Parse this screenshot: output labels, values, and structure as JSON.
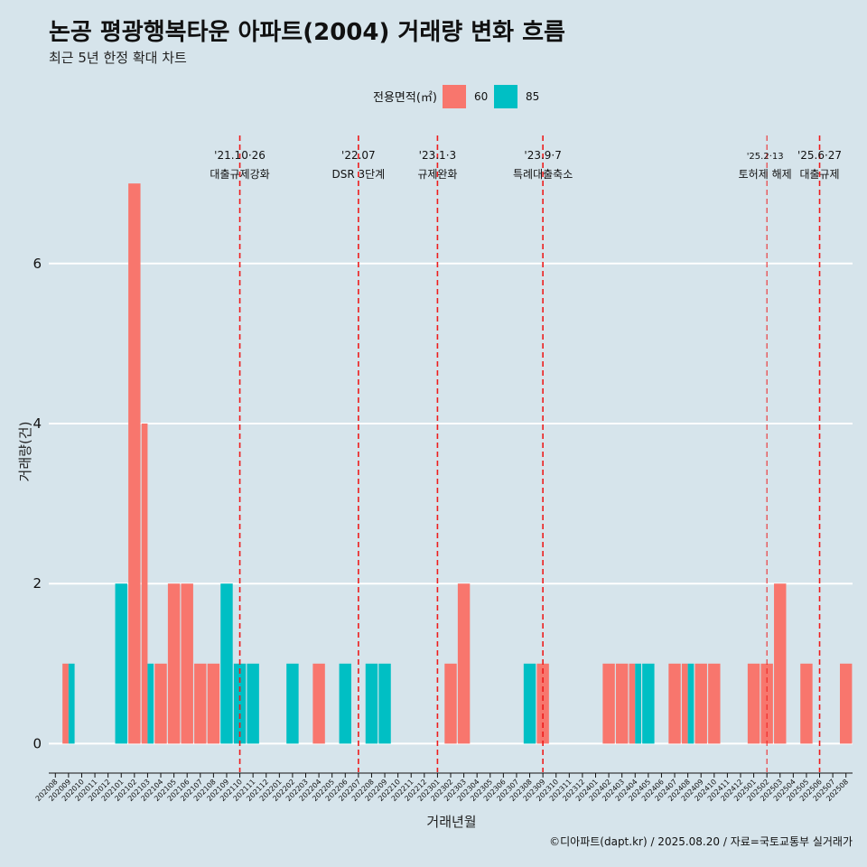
{
  "chart_data": {
    "type": "bar",
    "title": "논공 평광행복타운 아파트(2004) 거래량 변화 흐름",
    "subtitle": "최근 5년 한정 확대 차트",
    "xlabel": "거래년월",
    "ylabel": "거래량(건)",
    "ylim": [
      -0.3,
      7.6
    ],
    "yticks": [
      0,
      2,
      4,
      6
    ],
    "grid": true,
    "legend": {
      "title": "전용면적(㎡)",
      "placement": "top"
    },
    "categories": [
      "202008",
      "202009",
      "202010",
      "202011",
      "202012",
      "202101",
      "202102",
      "202103",
      "202104",
      "202105",
      "202106",
      "202107",
      "202108",
      "202109",
      "202110",
      "202111",
      "202112",
      "202201",
      "202202",
      "202203",
      "202204",
      "202205",
      "202206",
      "202207",
      "202208",
      "202209",
      "202210",
      "202211",
      "202212",
      "202301",
      "202302",
      "202303",
      "202304",
      "202305",
      "202306",
      "202307",
      "202308",
      "202309",
      "202310",
      "202311",
      "202312",
      "202401",
      "202402",
      "202403",
      "202404",
      "202405",
      "202406",
      "202407",
      "202408",
      "202409",
      "202410",
      "202411",
      "202412",
      "202501",
      "202502",
      "202503",
      "202504",
      "202505",
      "202506",
      "202507",
      "202508"
    ],
    "series": [
      {
        "name": "60",
        "color": "#f8766d",
        "values": [
          0,
          1,
          0,
          0,
          0,
          0,
          7,
          4,
          1,
          2,
          2,
          1,
          1,
          0,
          0,
          0,
          0,
          0,
          0,
          0,
          1,
          0,
          0,
          0,
          0,
          0,
          0,
          0,
          0,
          0,
          1,
          2,
          0,
          0,
          0,
          0,
          0,
          1,
          0,
          0,
          0,
          0,
          1,
          1,
          1,
          0,
          0,
          1,
          1,
          1,
          1,
          0,
          0,
          1,
          1,
          2,
          0,
          1,
          0,
          0,
          1
        ]
      },
      {
        "name": "85",
        "color": "#00bfc4",
        "values": [
          0,
          1,
          0,
          0,
          0,
          2,
          0,
          1,
          0,
          0,
          0,
          0,
          0,
          2,
          1,
          1,
          0,
          0,
          1,
          0,
          0,
          0,
          1,
          0,
          1,
          1,
          0,
          0,
          0,
          0,
          0,
          0,
          0,
          0,
          0,
          0,
          1,
          0,
          0,
          0,
          0,
          0,
          0,
          0,
          1,
          1,
          0,
          0,
          1,
          0,
          0,
          0,
          0,
          0,
          0,
          0,
          0,
          0,
          0,
          0,
          0
        ]
      }
    ],
    "annotations": [
      {
        "x": "202110",
        "date": "'21.10·26",
        "label": "대출규제강화"
      },
      {
        "x": "202207",
        "date": "'22.07",
        "label": "DSR 3단계"
      },
      {
        "x": "202301",
        "date": "'23.1·3",
        "label": "규제완화"
      },
      {
        "x": "202309",
        "date": "'23.9·7",
        "label": "특례대출축소"
      },
      {
        "x": "202502",
        "date": "'25.2·13",
        "label": "토허제 해제"
      },
      {
        "x": "202506",
        "date": "'25.6·27",
        "label": "대출규제"
      }
    ]
  },
  "caption": "©디아파트(dapt.kr) / 2025.08.20 / 자료=국토교통부 실거래가"
}
